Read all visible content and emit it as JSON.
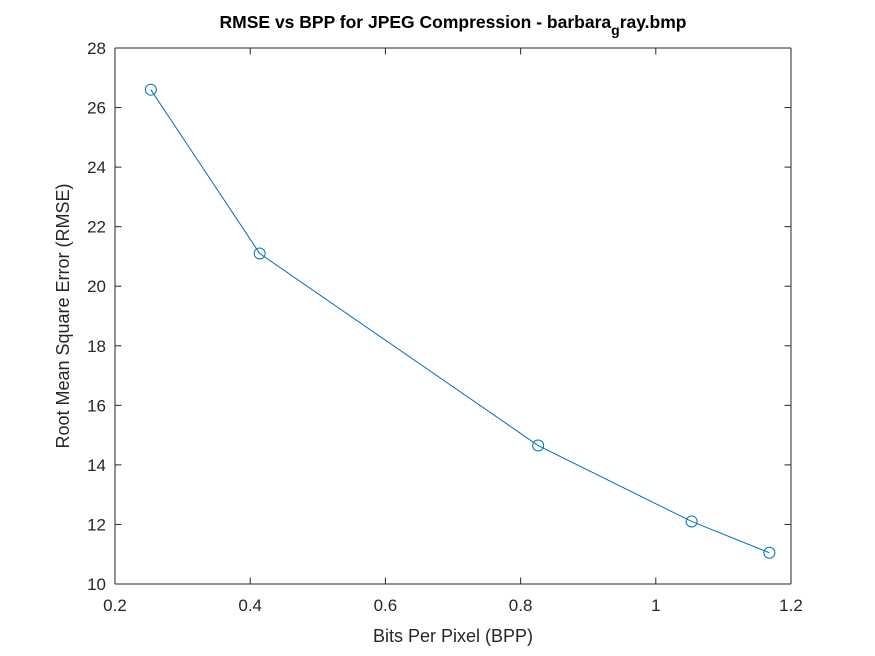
{
  "chart_data": {
    "type": "line",
    "title": "RMSE vs BPP for JPEG Compression - barbara",
    "title_subscript": "g",
    "title_suffix": "ray.bmp",
    "xlabel": "Bits Per Pixel (BPP)",
    "ylabel": "Root Mean Square Error (RMSE)",
    "xlim": [
      0.2,
      1.2
    ],
    "ylim": [
      10,
      28
    ],
    "xticks": [
      0.2,
      0.4,
      0.6,
      0.8,
      1,
      1.2
    ],
    "xtick_labels": [
      "0.2",
      "0.4",
      "0.6",
      "0.8",
      "1",
      "1.2"
    ],
    "yticks": [
      10,
      12,
      14,
      16,
      18,
      20,
      22,
      24,
      26,
      28
    ],
    "ytick_labels": [
      "10",
      "12",
      "14",
      "16",
      "18",
      "20",
      "22",
      "24",
      "26",
      "28"
    ],
    "grid": false,
    "line_color": "#0072BD",
    "marker": "circle-open",
    "series": [
      {
        "x": [
          0.253,
          0.414,
          0.826,
          1.053,
          1.168
        ],
        "y": [
          26.6,
          21.1,
          14.65,
          12.1,
          11.05
        ]
      }
    ]
  }
}
